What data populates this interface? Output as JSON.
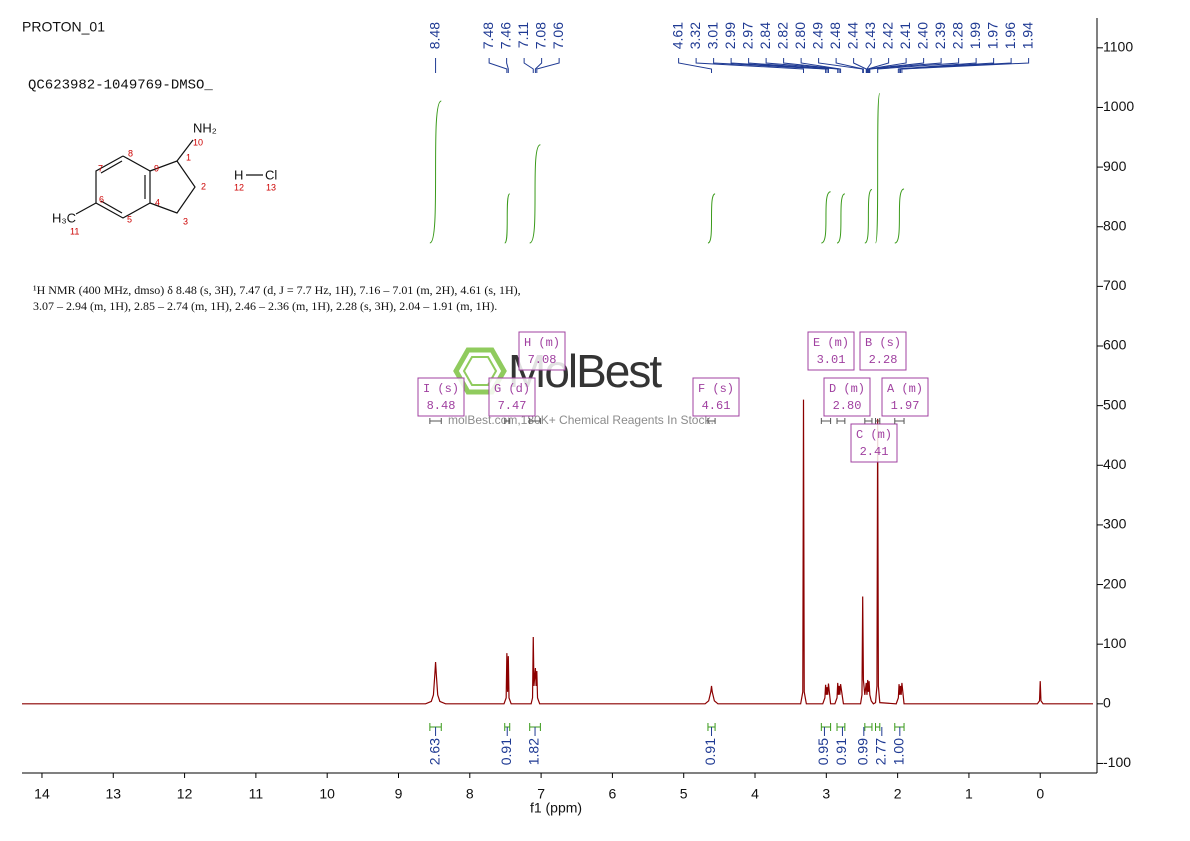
{
  "chart_data": {
    "type": "line",
    "title": "PROTON_01",
    "subtitle": "QC623982-1049769-DMSO_",
    "xlabel": "f1 (ppm)",
    "xlim": [
      14.28,
      -0.74
    ],
    "xticks": [
      14,
      13,
      12,
      11,
      10,
      9,
      8,
      7,
      6,
      5,
      4,
      3,
      2,
      1,
      0
    ],
    "ylim": [
      -116,
      1150
    ],
    "yticks": [
      -100,
      0,
      100,
      200,
      300,
      400,
      500,
      600,
      700,
      800,
      900,
      1000,
      1100
    ],
    "series": [
      {
        "color": "#8b0000",
        "x": [
          14.28,
          8.62,
          8.54,
          8.51,
          8.49,
          8.48,
          8.47,
          8.45,
          8.42,
          8.34,
          7.52,
          7.49,
          7.48,
          7.47,
          7.46,
          7.45,
          7.42,
          7.14,
          7.12,
          7.11,
          7.1,
          7.08,
          7.07,
          7.06,
          7.05,
          7.02,
          4.7,
          4.65,
          4.62,
          4.61,
          4.6,
          4.57,
          4.52,
          3.36,
          3.33,
          3.32,
          3.31,
          3.28,
          3.05,
          3.02,
          3.01,
          3.0,
          2.99,
          2.98,
          2.97,
          2.94,
          2.88,
          2.85,
          2.84,
          2.83,
          2.82,
          2.81,
          2.8,
          2.76,
          2.52,
          2.5,
          2.49,
          2.48,
          2.46,
          2.44,
          2.43,
          2.42,
          2.41,
          2.4,
          2.39,
          2.37,
          2.34,
          2.31,
          2.29,
          2.28,
          2.27,
          2.25,
          2.02,
          1.99,
          1.98,
          1.97,
          1.96,
          1.95,
          1.94,
          1.91,
          0.04,
          0.01,
          0.0,
          -0.01,
          -0.04,
          -0.74
        ],
        "values": [
          0,
          0,
          4,
          15,
          50,
          70,
          50,
          15,
          4,
          0,
          0,
          10,
          85,
          20,
          80,
          10,
          0,
          0,
          10,
          112,
          30,
          60,
          30,
          55,
          10,
          0,
          0,
          5,
          20,
          30,
          20,
          5,
          0,
          0,
          20,
          510,
          20,
          0,
          0,
          10,
          32,
          15,
          28,
          15,
          34,
          0,
          0,
          10,
          35,
          15,
          30,
          15,
          33,
          0,
          0,
          15,
          180,
          40,
          15,
          35,
          15,
          40,
          20,
          38,
          15,
          5,
          0,
          2,
          30,
          478,
          30,
          2,
          0,
          10,
          33,
          15,
          30,
          15,
          35,
          0,
          0,
          5,
          38,
          5,
          0,
          0
        ]
      }
    ],
    "peaks": {
      "values": [
        8.48,
        7.48,
        7.46,
        7.11,
        7.08,
        7.06,
        4.61,
        3.32,
        3.01,
        2.99,
        2.97,
        2.84,
        2.82,
        2.8,
        2.49,
        2.48,
        2.44,
        2.43,
        2.42,
        2.41,
        2.4,
        2.39,
        2.28,
        1.99,
        1.97,
        1.96,
        1.94
      ],
      "value_labels": [
        "8.48",
        "7.48",
        "7.46",
        "7.11",
        "7.08",
        "7.06",
        "4.61",
        "3.32",
        "3.01",
        "2.99",
        "2.97",
        "2.84",
        "2.82",
        "2.80",
        "2.49",
        "2.48",
        "2.44",
        "2.43",
        "2.42",
        "2.41",
        "2.40",
        "2.39",
        "2.28",
        "1.99",
        "1.97",
        "1.96",
        "1.94"
      ]
    },
    "integrals": {
      "ranges": [
        [
          8.56,
          8.4
        ],
        [
          7.51,
          7.44
        ],
        [
          7.16,
          7.01
        ],
        [
          4.66,
          4.56
        ],
        [
          3.07,
          2.94
        ],
        [
          2.85,
          2.74
        ],
        [
          2.46,
          2.36
        ],
        [
          2.31,
          2.25
        ],
        [
          2.04,
          1.91
        ]
      ],
      "values": [
        2.63,
        0.91,
        1.82,
        0.91,
        0.95,
        0.91,
        0.99,
        2.77,
        1.0
      ],
      "value_labels": [
        "2.63",
        "0.91",
        "1.82",
        "0.91",
        "0.95",
        "0.91",
        "0.99",
        "2.77",
        "1.00"
      ]
    },
    "multiplets": {
      "labels": [
        "I (s)",
        "G (d)",
        "H (m)",
        "F (s)",
        "E (m)",
        "D (m)",
        "C (m)",
        "B (s)",
        "A (m)"
      ],
      "shifts": [
        8.48,
        7.47,
        7.08,
        4.61,
        3.01,
        2.8,
        2.41,
        2.28,
        1.97
      ],
      "shift_labels": [
        "8.48",
        "7.47",
        "7.08",
        "4.61",
        "3.01",
        "2.80",
        "2.41",
        "2.28",
        "1.97"
      ],
      "ranges": [
        [
          8.56,
          8.4
        ],
        [
          7.51,
          7.44
        ],
        [
          7.16,
          7.01
        ],
        [
          4.66,
          4.56
        ],
        [
          3.07,
          2.94
        ],
        [
          2.85,
          2.74
        ],
        [
          2.46,
          2.36
        ],
        [
          2.31,
          2.25
        ],
        [
          2.04,
          1.91
        ]
      ]
    }
  },
  "structure": {
    "atoms": [
      "NH₂",
      "10",
      "1",
      "2",
      "3",
      "4",
      "5",
      "6",
      "7",
      "8",
      "9",
      "H₃C",
      "11",
      "H",
      "Cl",
      "12",
      "13"
    ]
  },
  "description": [
    "¹H NMR (400 MHz, dmso) δ 8.48 (s, 3H), 7.47 (d, J = 7.7 Hz, 1H), 7.16 – 7.01 (m, 2H), 4.61 (s, 1H),",
    "3.07 – 2.94 (m, 1H), 2.85 – 2.74 (m, 1H), 2.46 – 2.36 (m, 1H), 2.28 (s, 3H), 2.04 – 1.91 (m, 1H)."
  ],
  "watermark": {
    "logo": "MolBest",
    "tagline": "molBest.com,180K+ Chemical Reagents In Stock."
  }
}
